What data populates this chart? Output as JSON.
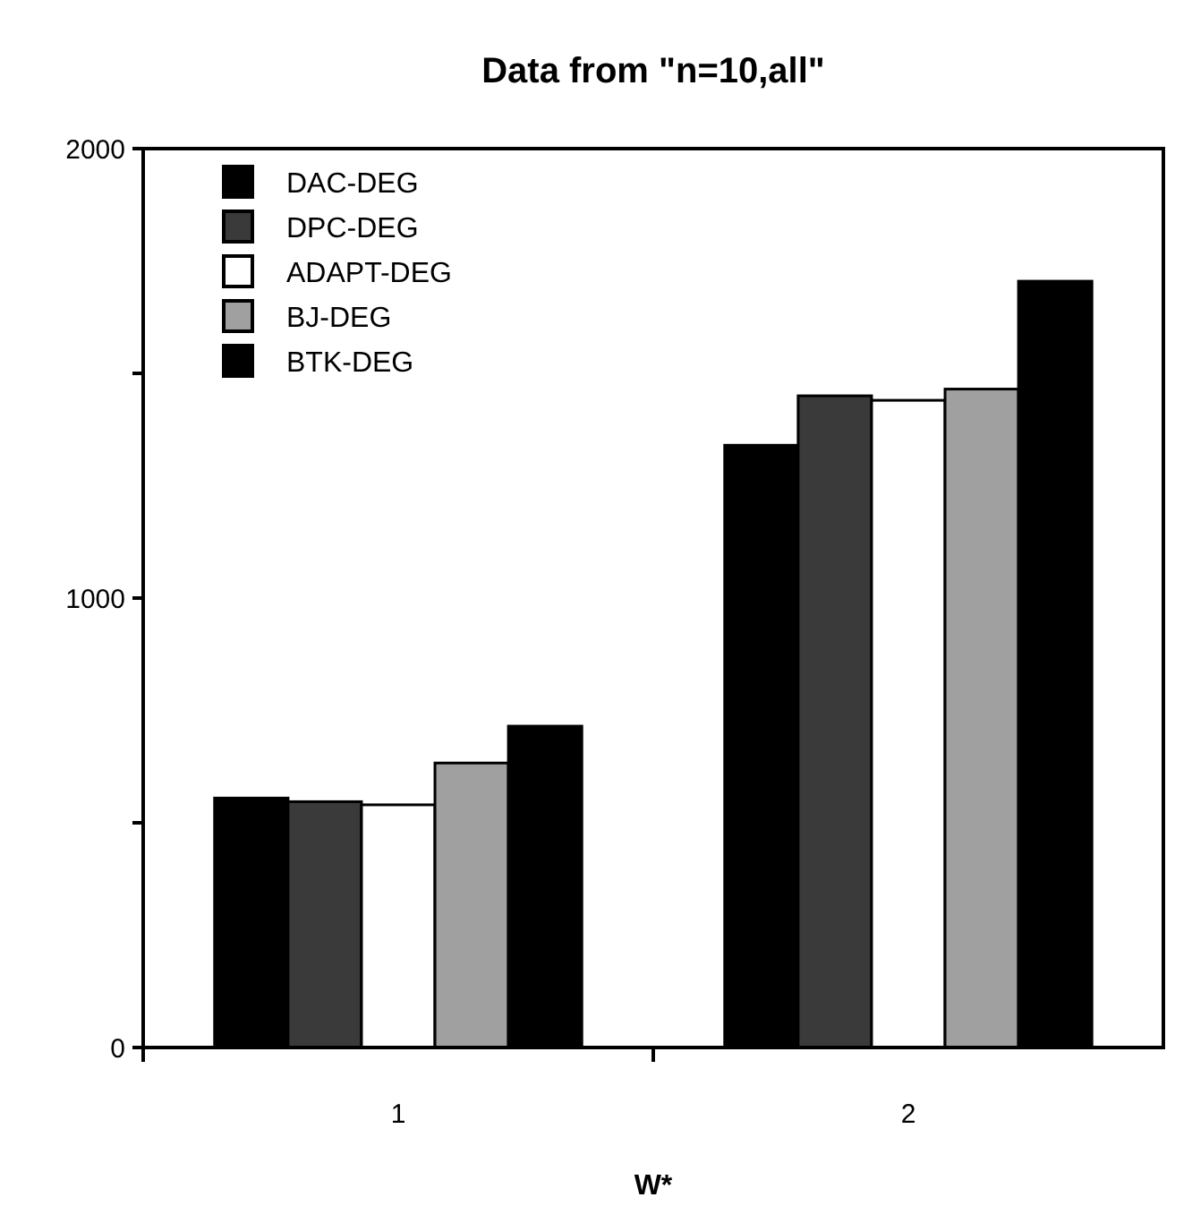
{
  "chart_data": {
    "type": "bar",
    "title": "Data from \"n=10,all\"",
    "xlabel": "W*",
    "categories": [
      "1",
      "2"
    ],
    "series": [
      {
        "name": "DAC-DEG",
        "color": "#000000",
        "values": [
          555,
          1340
        ]
      },
      {
        "name": "DPC-DEG",
        "color": "#3a3a3a",
        "values": [
          547,
          1450
        ]
      },
      {
        "name": "ADAPT-DEG",
        "color": "#ffffff",
        "values": [
          540,
          1440
        ]
      },
      {
        "name": "BJ-DEG",
        "color": "#a0a0a0",
        "values": [
          633,
          1465
        ]
      },
      {
        "name": "BTK-DEG",
        "color": "#000000",
        "values": [
          715,
          1705
        ]
      }
    ],
    "ylim": [
      0,
      2000
    ],
    "yticks": [
      0,
      {
        "value": 500,
        "label": null
      },
      1000,
      {
        "value": 1500,
        "label": null
      },
      2000
    ],
    "legend": "top left"
  }
}
